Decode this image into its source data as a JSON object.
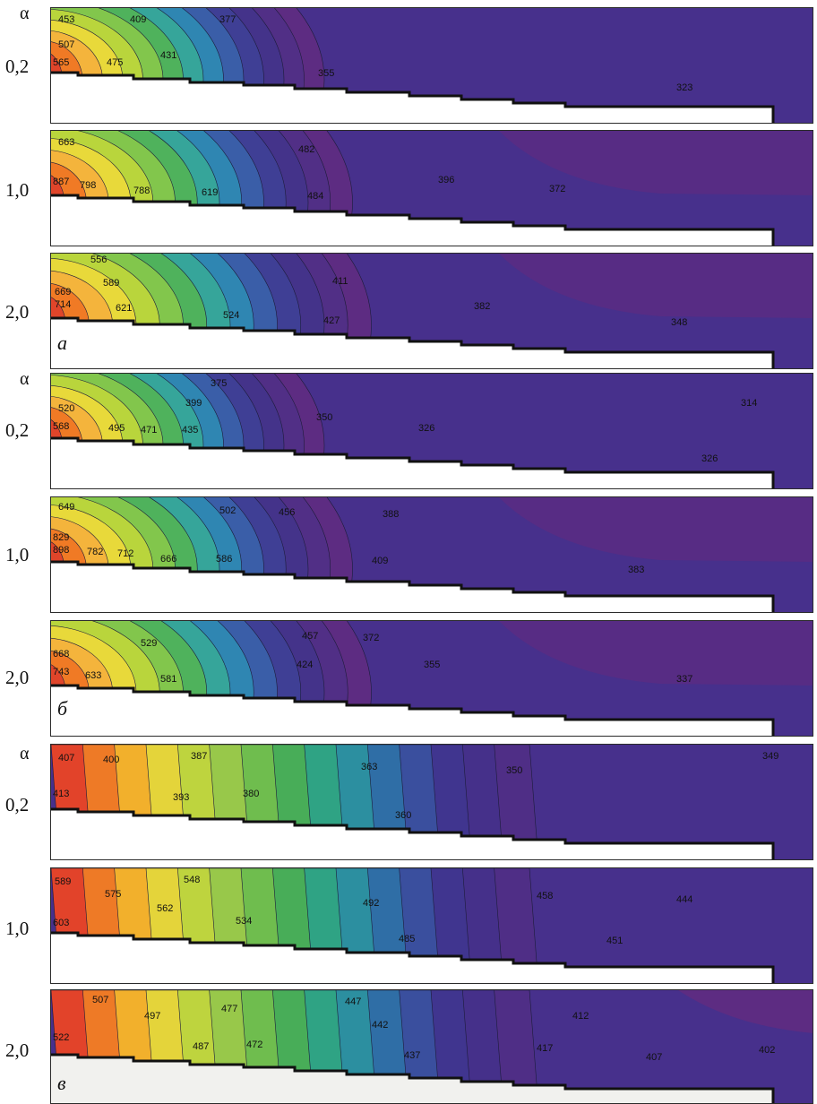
{
  "alpha_symbol": "α",
  "groups": [
    {
      "letter": "а",
      "variant": "hot",
      "rows": [
        {
          "alpha": "0,2",
          "labels": [
            "453",
            "409",
            "377",
            "507",
            "565",
            "475",
            "431",
            "355",
            "323"
          ]
        },
        {
          "alpha": "1,0",
          "labels": [
            "663",
            "482",
            "887",
            "798",
            "788",
            "619",
            "484",
            "396",
            "372"
          ]
        },
        {
          "alpha": "2,0",
          "labels": [
            "556",
            "589",
            "411",
            "669",
            "714",
            "621",
            "524",
            "427",
            "382",
            "348"
          ]
        }
      ]
    },
    {
      "letter": "б",
      "variant": "hot",
      "rows": [
        {
          "alpha": "0,2",
          "labels": [
            "375",
            "399",
            "520",
            "568",
            "495",
            "471",
            "435",
            "350",
            "326",
            "314",
            "326"
          ]
        },
        {
          "alpha": "1,0",
          "labels": [
            "649",
            "502",
            "456",
            "388",
            "829",
            "898",
            "782",
            "712",
            "666",
            "586",
            "409",
            "383"
          ]
        },
        {
          "alpha": "2,0",
          "labels": [
            "529",
            "457",
            "372",
            "668",
            "743",
            "633",
            "581",
            "424",
            "355",
            "337"
          ]
        }
      ]
    },
    {
      "letter": "в",
      "variant": "warm",
      "rows": [
        {
          "alpha": "0,2",
          "labels": [
            "407",
            "400",
            "387",
            "363",
            "350",
            "349",
            "413",
            "393",
            "380",
            "360"
          ]
        },
        {
          "alpha": "1,0",
          "labels": [
            "589",
            "575",
            "548",
            "562",
            "492",
            "458",
            "444",
            "603",
            "534",
            "485",
            "451"
          ]
        },
        {
          "alpha": "2,0",
          "labels": [
            "507",
            "497",
            "477",
            "447",
            "442",
            "412",
            "522",
            "487",
            "472",
            "437",
            "417",
            "407",
            "402"
          ]
        }
      ]
    }
  ]
}
